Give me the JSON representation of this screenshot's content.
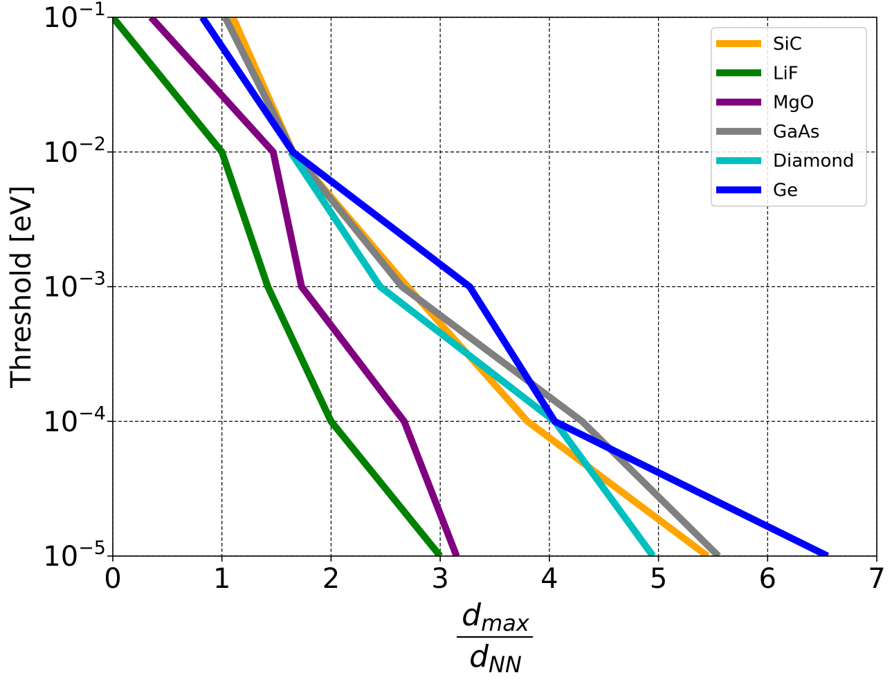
{
  "chart_data": {
    "type": "line",
    "title": "",
    "xlabel": {
      "numerator": "d",
      "numerator_sub": "max",
      "denominator": "d",
      "denominator_sub": "NN"
    },
    "ylabel": "Threshold [eV]",
    "xlim": [
      0,
      7
    ],
    "ylim": [
      1e-05,
      0.1
    ],
    "yscale": "log",
    "grid": true,
    "legend_position": "top-right",
    "xticks": [
      "0",
      "1",
      "2",
      "3",
      "4",
      "5",
      "6",
      "7"
    ],
    "yticks": [
      {
        "base": "10",
        "exp": "−1",
        "value": 0.1
      },
      {
        "base": "10",
        "exp": "−2",
        "value": 0.01
      },
      {
        "base": "10",
        "exp": "−3",
        "value": 0.001
      },
      {
        "base": "10",
        "exp": "−4",
        "value": 0.0001
      },
      {
        "base": "10",
        "exp": "−5",
        "value": 1e-05
      }
    ],
    "series": [
      {
        "name": "SiC",
        "color": "#ffa500",
        "points": [
          [
            1.1,
            0.1
          ],
          [
            1.65,
            0.01
          ],
          [
            2.7,
            0.001
          ],
          [
            3.8,
            0.0001
          ],
          [
            5.45,
            1e-05
          ]
        ]
      },
      {
        "name": "LiF",
        "color": "#008000",
        "points": [
          [
            0.0,
            0.1
          ],
          [
            1.0,
            0.01
          ],
          [
            1.42,
            0.001
          ],
          [
            2.0,
            0.0001
          ],
          [
            3.0,
            1e-05
          ]
        ]
      },
      {
        "name": "MgO",
        "color": "#800080",
        "points": [
          [
            0.35,
            0.1
          ],
          [
            1.47,
            0.01
          ],
          [
            1.73,
            0.001
          ],
          [
            2.67,
            0.0001
          ],
          [
            3.15,
            1e-05
          ]
        ]
      },
      {
        "name": "GaAs",
        "color": "#808080",
        "points": [
          [
            1.03,
            0.1
          ],
          [
            1.65,
            0.01
          ],
          [
            2.65,
            0.001
          ],
          [
            4.3,
            0.0001
          ],
          [
            5.55,
            1e-05
          ]
        ]
      },
      {
        "name": "Diamond",
        "color": "#00bfbf",
        "points": [
          [
            1.63,
            0.01
          ],
          [
            2.45,
            0.001
          ],
          [
            4.05,
            0.0001
          ],
          [
            4.95,
            1e-05
          ]
        ]
      },
      {
        "name": "Ge",
        "color": "#0000ff",
        "points": [
          [
            0.82,
            0.1
          ],
          [
            1.65,
            0.01
          ],
          [
            3.27,
            0.001
          ],
          [
            4.05,
            0.0001
          ],
          [
            6.55,
            1e-05
          ]
        ]
      }
    ]
  }
}
